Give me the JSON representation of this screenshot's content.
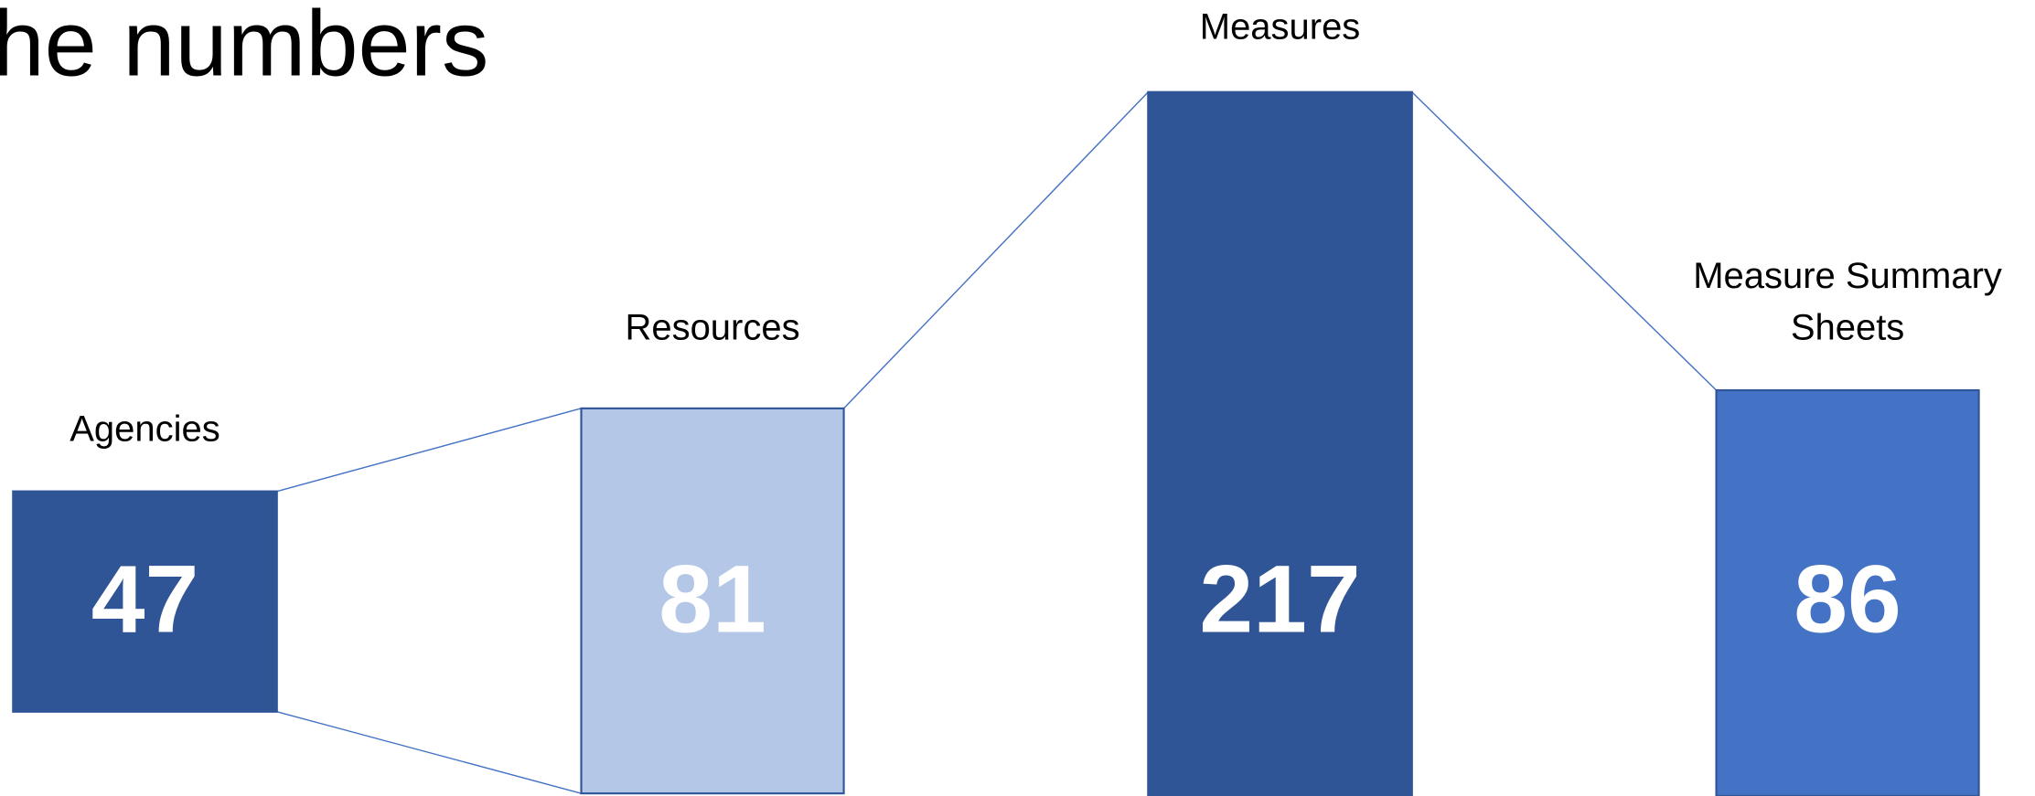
{
  "title": "he numbers",
  "nodes": [
    {
      "label": [
        "Agencies"
      ],
      "value": 47
    },
    {
      "label": [
        "Resources"
      ],
      "value": 81
    },
    {
      "label": [
        "Measures"
      ],
      "value": 217
    },
    {
      "label": [
        "Measure Summary",
        "Sheets"
      ],
      "value": 86
    }
  ]
}
